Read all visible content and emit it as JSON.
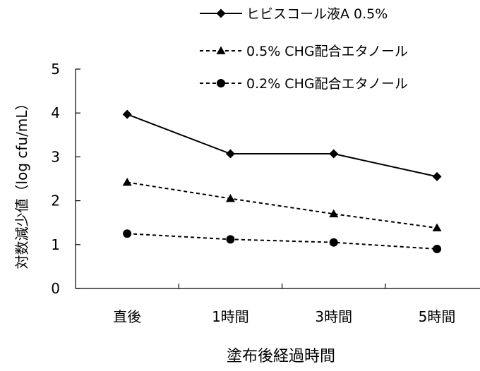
{
  "chart_data": {
    "type": "line",
    "title": "",
    "xlabel": "塗布後経過時間",
    "ylabel": "対数減少値（log cfu/mL）",
    "categories": [
      "直後",
      "1時間",
      "3時間",
      "5時間"
    ],
    "yticks": [
      "0",
      "1",
      "2",
      "3",
      "4",
      "5"
    ],
    "ylim": [
      0,
      5
    ],
    "grid": false,
    "legend_position": "top-right",
    "series": [
      {
        "name": "ヒビスコール液A 0.5%",
        "values": [
          3.97,
          3.07,
          3.07,
          2.55
        ],
        "line_style": "solid",
        "marker": "diamond",
        "color": "#000000"
      },
      {
        "name": "0.5% CHG配合エタノール",
        "values": [
          2.42,
          2.05,
          1.7,
          1.38
        ],
        "line_style": "dashed",
        "marker": "triangle",
        "color": "#000000"
      },
      {
        "name": "0.2% CHG配合エタノール",
        "values": [
          1.25,
          1.12,
          1.05,
          0.9
        ],
        "line_style": "dashed",
        "marker": "circle",
        "color": "#000000"
      }
    ]
  }
}
